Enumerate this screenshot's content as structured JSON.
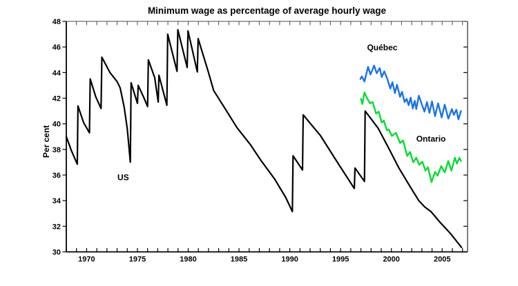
{
  "title": "Minimum wage as percentage of average hourly wage",
  "axes": {
    "y_label": "Per cent",
    "y_min": 30,
    "y_max": 48,
    "y_tick_step": 2,
    "y_tick_labels": [
      "30",
      "32",
      "34",
      "36",
      "38",
      "40",
      "42",
      "44",
      "46",
      "48"
    ],
    "x_min": 1968,
    "x_max": 2007.5,
    "x_labeled_ticks": [
      1970,
      1975,
      1980,
      1985,
      1990,
      1995,
      2000,
      2005
    ],
    "x_minor_tick_every": 1,
    "grid": "off",
    "frame": "box",
    "axis_color": "#000000"
  },
  "chart_data": {
    "type": "line",
    "xlabel": "",
    "ylabel": "Per cent",
    "ylim": [
      30,
      48
    ],
    "xlim": [
      1968,
      2007.5
    ],
    "legend_position": "inline-labels",
    "series": [
      {
        "name": "US",
        "color": "#000000",
        "label": {
          "x": 1973.6,
          "y": 35.6
        },
        "points": [
          [
            1968.0,
            39.0
          ],
          [
            1968.5,
            37.9
          ],
          [
            1969.08,
            36.85
          ],
          [
            1969.15,
            41.4
          ],
          [
            1969.7,
            40.1
          ],
          [
            1970.28,
            39.3
          ],
          [
            1970.35,
            43.5
          ],
          [
            1970.9,
            42.1
          ],
          [
            1971.42,
            41.2
          ],
          [
            1971.5,
            45.2
          ],
          [
            1972.3,
            44.0
          ],
          [
            1973.0,
            43.3
          ],
          [
            1973.3,
            42.8
          ],
          [
            1973.7,
            41.3
          ],
          [
            1974.0,
            39.6
          ],
          [
            1974.3,
            37.0
          ],
          [
            1974.38,
            43.2
          ],
          [
            1975.0,
            41.6
          ],
          [
            1975.08,
            43.0
          ],
          [
            1975.6,
            42.1
          ],
          [
            1976.0,
            41.35
          ],
          [
            1976.08,
            45.0
          ],
          [
            1976.7,
            43.6
          ],
          [
            1977.05,
            41.7
          ],
          [
            1977.12,
            43.8
          ],
          [
            1977.9,
            41.45
          ],
          [
            1977.98,
            47.0
          ],
          [
            1978.9,
            44.1
          ],
          [
            1978.98,
            47.35
          ],
          [
            1979.9,
            44.4
          ],
          [
            1979.98,
            47.25
          ],
          [
            1980.9,
            44.05
          ],
          [
            1980.98,
            46.65
          ],
          [
            1982.0,
            44.0
          ],
          [
            1982.5,
            42.6
          ],
          [
            1983.7,
            41.1
          ],
          [
            1984.8,
            39.7
          ],
          [
            1986.1,
            38.4
          ],
          [
            1987.2,
            37.1
          ],
          [
            1988.5,
            35.7
          ],
          [
            1989.6,
            34.25
          ],
          [
            1990.25,
            33.15
          ],
          [
            1990.32,
            37.5
          ],
          [
            1991.25,
            36.4
          ],
          [
            1991.32,
            40.7
          ],
          [
            1993.0,
            39.1
          ],
          [
            1994.6,
            37.1
          ],
          [
            1996.35,
            34.95
          ],
          [
            1996.42,
            36.55
          ],
          [
            1997.35,
            35.5
          ],
          [
            1997.42,
            41.0
          ],
          [
            1998.7,
            39.65
          ],
          [
            1999.8,
            38.0
          ],
          [
            2000.7,
            36.6
          ],
          [
            2001.8,
            35.15
          ],
          [
            2002.7,
            34.0
          ],
          [
            2003.3,
            33.5
          ],
          [
            2003.9,
            33.15
          ],
          [
            2004.8,
            32.3
          ],
          [
            2005.8,
            31.45
          ],
          [
            2006.9,
            30.35
          ]
        ]
      },
      {
        "name": "Ontario",
        "color": "#00DC32",
        "label": {
          "x": 2003.9,
          "y": 38.6
        },
        "points": [
          [
            1997.0,
            41.95
          ],
          [
            1997.15,
            41.55
          ],
          [
            1997.35,
            42.45
          ],
          [
            1997.6,
            42.0
          ],
          [
            1997.9,
            41.6
          ],
          [
            1998.15,
            41.7
          ],
          [
            1998.5,
            40.8
          ],
          [
            1998.75,
            40.95
          ],
          [
            1999.05,
            40.1
          ],
          [
            1999.25,
            40.25
          ],
          [
            1999.55,
            39.5
          ],
          [
            1999.75,
            39.55
          ],
          [
            2000.05,
            39.05
          ],
          [
            2000.45,
            39.3
          ],
          [
            2000.85,
            38.5
          ],
          [
            2001.15,
            38.7
          ],
          [
            2001.55,
            37.5
          ],
          [
            2001.85,
            37.8
          ],
          [
            2002.15,
            37.0
          ],
          [
            2002.45,
            37.35
          ],
          [
            2002.75,
            36.8
          ],
          [
            2003.05,
            37.05
          ],
          [
            2003.35,
            36.35
          ],
          [
            2003.6,
            36.6
          ],
          [
            2003.95,
            35.45
          ],
          [
            2004.3,
            36.25
          ],
          [
            2004.55,
            35.95
          ],
          [
            2004.9,
            36.7
          ],
          [
            2005.25,
            36.2
          ],
          [
            2005.6,
            37.1
          ],
          [
            2005.9,
            36.35
          ],
          [
            2006.25,
            37.35
          ],
          [
            2006.45,
            36.9
          ],
          [
            2006.7,
            37.35
          ],
          [
            2006.85,
            37.1
          ]
        ]
      },
      {
        "name": "Québec",
        "color": "#1874E8",
        "label": {
          "x": 1999.1,
          "y": 45.75
        },
        "points": [
          [
            1996.95,
            43.5
          ],
          [
            1997.1,
            43.7
          ],
          [
            1997.35,
            43.3
          ],
          [
            1997.7,
            44.45
          ],
          [
            1997.95,
            43.85
          ],
          [
            1998.3,
            44.55
          ],
          [
            1998.55,
            43.95
          ],
          [
            1998.85,
            44.35
          ],
          [
            1999.05,
            43.65
          ],
          [
            1999.3,
            44.1
          ],
          [
            1999.6,
            43.5
          ],
          [
            1999.9,
            42.75
          ],
          [
            2000.1,
            43.25
          ],
          [
            2000.35,
            42.4
          ],
          [
            2000.55,
            43.05
          ],
          [
            2000.85,
            42.1
          ],
          [
            2001.05,
            42.5
          ],
          [
            2001.3,
            41.7
          ],
          [
            2001.5,
            41.95
          ],
          [
            2001.7,
            41.45
          ],
          [
            2001.9,
            42.05
          ],
          [
            2002.1,
            41.2
          ],
          [
            2002.3,
            41.8
          ],
          [
            2002.45,
            41.15
          ],
          [
            2002.7,
            42.2
          ],
          [
            2002.9,
            41.75
          ],
          [
            2003.25,
            40.95
          ],
          [
            2003.5,
            41.7
          ],
          [
            2003.75,
            40.85
          ],
          [
            2004.0,
            41.75
          ],
          [
            2004.3,
            40.6
          ],
          [
            2004.6,
            41.6
          ],
          [
            2004.95,
            40.5
          ],
          [
            2005.25,
            41.5
          ],
          [
            2005.6,
            40.4
          ],
          [
            2005.95,
            41.15
          ],
          [
            2006.15,
            40.7
          ],
          [
            2006.4,
            41.1
          ],
          [
            2006.6,
            40.35
          ],
          [
            2006.85,
            41.0
          ]
        ]
      }
    ]
  }
}
